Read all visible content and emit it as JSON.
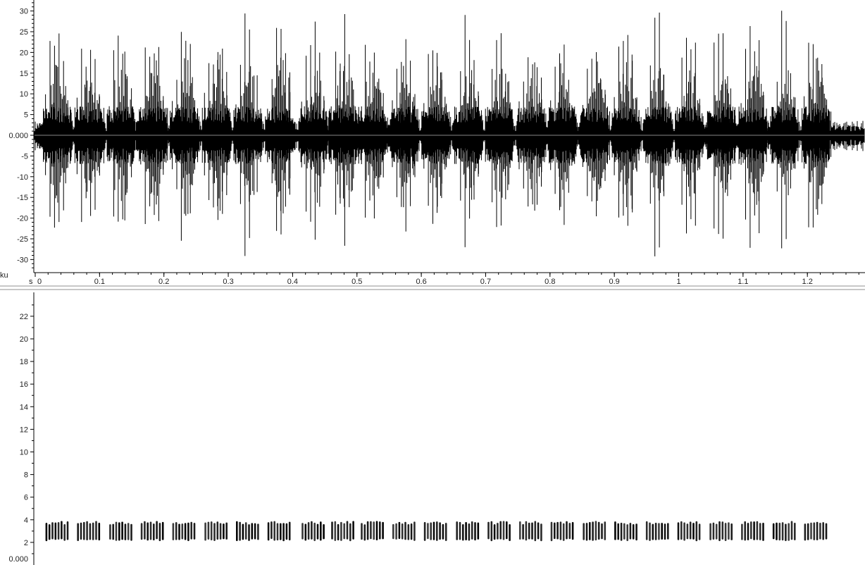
{
  "chart_data": [
    {
      "type": "line",
      "panel": "waveform",
      "xlabel": "s",
      "ylabel": "ku",
      "xlim": [
        0,
        1.29
      ],
      "ylim": [
        -33,
        33
      ],
      "x_ticks": [
        "0",
        "0.1",
        "0.2",
        "0.3",
        "0.4",
        "0.5",
        "0.6",
        "0.7",
        "0.8",
        "0.9",
        "1",
        "1.1",
        "1.2"
      ],
      "y_ticks": [
        "30",
        "25",
        "20",
        "15",
        "10",
        "5",
        "0.000",
        "-5",
        "-10",
        "-15",
        "-20",
        "-25",
        "-30"
      ],
      "y_tick_values": [
        30,
        25,
        20,
        15,
        10,
        5,
        0,
        -5,
        -10,
        -15,
        -20,
        -25,
        -30
      ],
      "x_tick_values": [
        0,
        0.1,
        0.2,
        0.3,
        0.4,
        0.5,
        0.6,
        0.7,
        0.8,
        0.9,
        1,
        1.1,
        1.2
      ],
      "burst_starts_s": [
        0.016,
        0.065,
        0.115,
        0.164,
        0.213,
        0.263,
        0.312,
        0.361,
        0.414,
        0.46,
        0.506,
        0.555,
        0.604,
        0.654,
        0.703,
        0.752,
        0.801,
        0.851,
        0.9,
        0.949,
        0.998,
        1.048,
        1.097,
        1.146,
        1.195
      ],
      "burst_duration_s": 0.035,
      "pulses_per_burst": 6,
      "peak_amplitude": 31,
      "noise_amplitude": 2.5,
      "color": "#000000",
      "zero_line_color": "#888888"
    },
    {
      "type": "heatmap",
      "panel": "spectrogram",
      "ylim": [
        0,
        24
      ],
      "y_ticks": [
        "22",
        "20",
        "18",
        "16",
        "14",
        "12",
        "10",
        "8",
        "6",
        "4",
        "2",
        "0.000"
      ],
      "y_tick_values": [
        22,
        20,
        18,
        16,
        14,
        12,
        10,
        8,
        6,
        4,
        2,
        0
      ],
      "band": [
        2.1,
        3.9
      ],
      "color": "#000000"
    }
  ]
}
